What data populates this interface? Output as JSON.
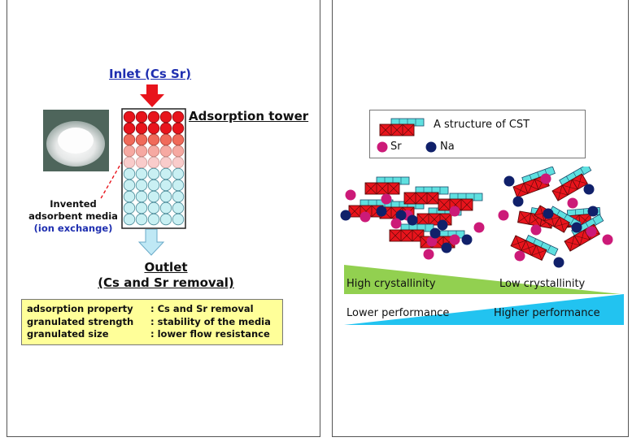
{
  "left": {
    "inlet_label": "Inlet (Cs Sr)",
    "tower_label": "Adsorption tower",
    "media_label_line1": "Invented",
    "media_label_line2": "adsorbent media",
    "media_label_line3": "(ion exchange)",
    "outlet_line1": "Outlet",
    "outlet_line2": "(Cs and Sr removal)",
    "properties": [
      {
        "key": "adsorption property",
        "value": ": Cs and Sr removal"
      },
      {
        "key": "granulated strength",
        "value": ": stability of the media"
      },
      {
        "key": "granulated size",
        "value": ": lower flow resistance"
      }
    ]
  },
  "right": {
    "legend_cst": "A structure of CST",
    "legend_sr": "Sr",
    "legend_na": "Na",
    "high_crystallinity": "High crystallinity",
    "low_crystallinity": "Low crystallinity",
    "lower_performance": "Lower performance",
    "higher_performance": "Higher performance"
  },
  "colors": {
    "block_red": "#e8141c",
    "block_cyan": "#5fe0e0",
    "sr_magenta": "#cc1a78",
    "na_navy": "#10206a",
    "wedge_green": "#92d050",
    "wedge_blue": "#22c3f0",
    "props_yellow": "#ffff99",
    "arrow_red": "#e8141c",
    "arrow_lightblue": "#bfe8f5"
  }
}
